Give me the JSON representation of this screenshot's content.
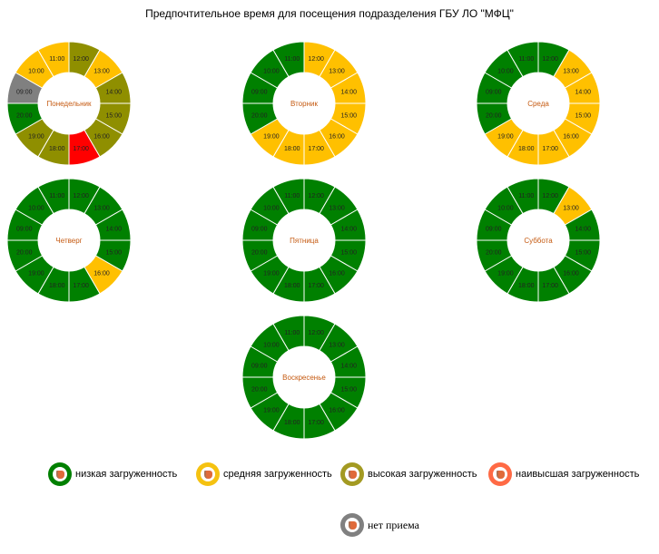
{
  "chart_data": {
    "type": "donut",
    "title": "Предпочтительное время для посещения подразделения ГБУ ЛО \"МФЦ\"",
    "hours": [
      "12:00",
      "13:00",
      "14:00",
      "15:00",
      "16:00",
      "17:00",
      "18:00",
      "19:00",
      "20:00",
      "09:00",
      "10:00",
      "11:00"
    ],
    "levels": {
      "low": {
        "label": "низкая загруженность",
        "color": "#008000"
      },
      "medium": {
        "label": "средняя загруженность",
        "color": "#FFC000"
      },
      "high": {
        "label": "высокая загруженность",
        "color": "#8F8F00"
      },
      "highest": {
        "label": "наивысшая загруженность",
        "color": "#FF0000",
        "legend_color": "#FF6A45"
      },
      "none": {
        "label": "нет приема",
        "color": "#808080"
      }
    },
    "days": [
      {
        "name": "Понедельник",
        "load": [
          "high",
          "medium",
          "high",
          "high",
          "high",
          "highest",
          "high",
          "high",
          "low",
          "none",
          "medium",
          "medium"
        ]
      },
      {
        "name": "Вторник",
        "load": [
          "medium",
          "medium",
          "medium",
          "medium",
          "medium",
          "medium",
          "medium",
          "medium",
          "low",
          "low",
          "low",
          "low"
        ]
      },
      {
        "name": "Среда",
        "load": [
          "low",
          "medium",
          "medium",
          "medium",
          "medium",
          "medium",
          "medium",
          "medium",
          "low",
          "low",
          "low",
          "low"
        ]
      },
      {
        "name": "Четверг",
        "load": [
          "low",
          "low",
          "low",
          "low",
          "medium",
          "low",
          "low",
          "low",
          "low",
          "low",
          "low",
          "low"
        ]
      },
      {
        "name": "Пятница",
        "load": [
          "low",
          "low",
          "low",
          "low",
          "low",
          "low",
          "low",
          "low",
          "low",
          "low",
          "low",
          "low"
        ]
      },
      {
        "name": "Суббота",
        "load": [
          "low",
          "medium",
          "low",
          "low",
          "low",
          "low",
          "low",
          "low",
          "low",
          "low",
          "low",
          "low"
        ]
      },
      {
        "name": "Воскресенье",
        "load": [
          "low",
          "low",
          "low",
          "low",
          "low",
          "low",
          "low",
          "low",
          "low",
          "low",
          "low",
          "low"
        ]
      }
    ]
  }
}
